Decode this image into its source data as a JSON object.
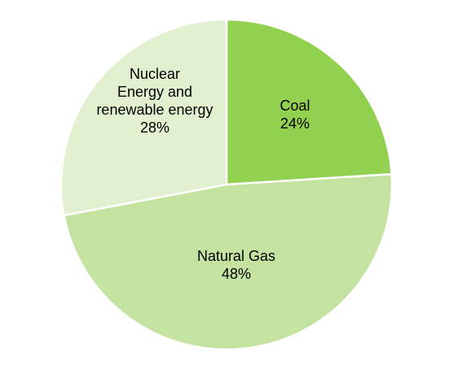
{
  "chart_data": {
    "type": "pie",
    "title": "",
    "slices": [
      {
        "label_lines": [
          "Coal"
        ],
        "percent_label": "24%",
        "value": 24,
        "color": "#92d050"
      },
      {
        "label_lines": [
          "Natural Gas"
        ],
        "percent_label": "48%",
        "value": 48,
        "color": "#c4e3a1"
      },
      {
        "label_lines": [
          "Nuclear",
          "Energy and",
          "renewable energy"
        ],
        "percent_label": "28%",
        "value": 28,
        "color": "#e1f0cf"
      }
    ],
    "legend": "none",
    "start_angle_deg": 0,
    "direction": "clockwise"
  }
}
